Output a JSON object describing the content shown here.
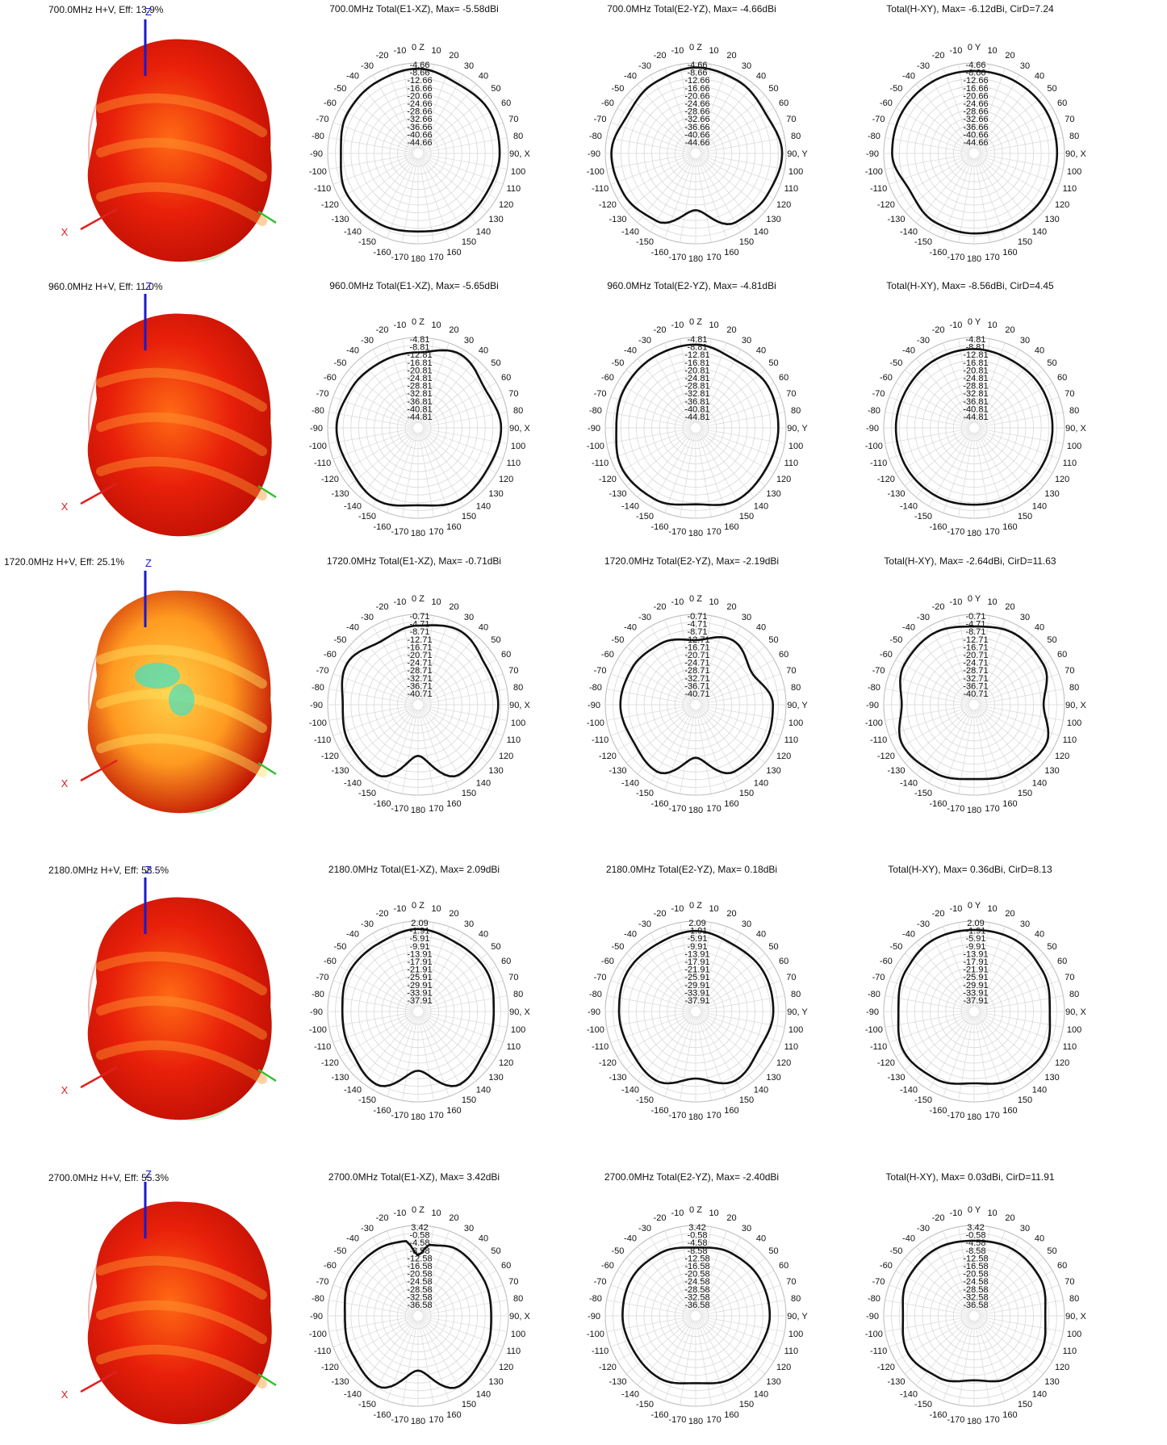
{
  "rows": [
    {
      "freq_title": "700.0MHz H+V, Eff: 13.9%",
      "polar_step": 4,
      "polar_rings": [
        "-4.66",
        "-8.66",
        "-12.66",
        "-16.66",
        "-20.66",
        "-24.66",
        "-28.66",
        "-32.66",
        "-36.66",
        "-40.66",
        "-44.66"
      ],
      "plots": [
        {
          "title": "700.0MHz Total(E1-XZ), Max= -5.58dBi",
          "axis": "Z",
          "side": "X"
        },
        {
          "title": "700.0MHz Total(E2-YZ), Max= -4.66dBi",
          "axis": "Z",
          "side": "Y"
        },
        {
          "title": "Total(H-XY), Max= -6.12dBi, CirD=7.24",
          "axis": "Y",
          "side": "X"
        }
      ]
    },
    {
      "freq_title": "960.0MHz H+V, Eff: 11.0%",
      "polar_step": 4,
      "polar_rings": [
        "-4.81",
        "-8.81",
        "-12.81",
        "-16.81",
        "-20.81",
        "-24.81",
        "-28.81",
        "-32.81",
        "-36.81",
        "-40.81",
        "-44.81"
      ],
      "plots": [
        {
          "title": "960.0MHz Total(E1-XZ), Max= -5.65dBi",
          "axis": "Z",
          "side": "X"
        },
        {
          "title": "960.0MHz Total(E2-YZ), Max= -4.81dBi",
          "axis": "Z",
          "side": "Y"
        },
        {
          "title": "Total(H-XY), Max= -8.56dBi, CirD=4.45",
          "axis": "Y",
          "side": "X"
        }
      ]
    },
    {
      "freq_title": "1720.0MHz H+V, Eff: 25.1%",
      "polar_step": 4,
      "polar_rings": [
        "-0.71",
        "-4.71",
        "-8.71",
        "-12.71",
        "-16.71",
        "-20.71",
        "-24.71",
        "-28.71",
        "-32.71",
        "-36.71",
        "-40.71"
      ],
      "plots": [
        {
          "title": "1720.0MHz Total(E1-XZ), Max= -0.71dBi",
          "axis": "Z",
          "side": "X"
        },
        {
          "title": "1720.0MHz Total(E2-YZ), Max= -2.19dBi",
          "axis": "Z",
          "side": "Y"
        },
        {
          "title": "Total(H-XY), Max= -2.64dBi, CirD=11.63",
          "axis": "Y",
          "side": "X"
        }
      ]
    },
    {
      "freq_title": "2180.0MHz H+V, Eff: 58.5%",
      "polar_step": 4,
      "polar_rings": [
        "2.09",
        "-1.91",
        "-5.91",
        "-9.91",
        "-13.91",
        "-17.91",
        "-21.91",
        "-25.91",
        "-29.91",
        "-33.91",
        "-37.91"
      ],
      "plots": [
        {
          "title": "2180.0MHz Total(E1-XZ), Max= 2.09dBi",
          "axis": "Z",
          "side": "X"
        },
        {
          "title": "2180.0MHz Total(E2-YZ), Max= 0.18dBi",
          "axis": "Z",
          "side": "Y"
        },
        {
          "title": "Total(H-XY), Max= 0.36dBi, CirD=8.13",
          "axis": "Y",
          "side": "X"
        }
      ]
    },
    {
      "freq_title": "2700.0MHz H+V, Eff: 55.3%",
      "polar_step": 4,
      "polar_rings": [
        "3.42",
        "-0.58",
        "-4.58",
        "-8.58",
        "-12.58",
        "-16.58",
        "-20.58",
        "-24.58",
        "-28.58",
        "-32.58",
        "-36.58"
      ],
      "plots": [
        {
          "title": "2700.0MHz Total(E1-XZ), Max= 3.42dBi",
          "axis": "Z",
          "side": "X"
        },
        {
          "title": "2700.0MHz Total(E2-YZ), Max= -2.40dBi",
          "axis": "Z",
          "side": "Y"
        },
        {
          "title": "Total(H-XY), Max= 0.03dBi, CirD=11.91",
          "axis": "Y",
          "side": "X"
        }
      ]
    }
  ],
  "angle_labels": [
    "0",
    "10",
    "20",
    "30",
    "40",
    "50",
    "60",
    "70",
    "80",
    "90",
    "100",
    "110",
    "120",
    "130",
    "140",
    "150",
    "160",
    "170",
    "180",
    "170",
    "160",
    "150",
    "140",
    "130",
    "120",
    "110",
    "100",
    "90",
    "80",
    "70",
    "60",
    "50",
    "40",
    "30",
    "20",
    "10"
  ],
  "angle_label_names": [
    "-10",
    "-20",
    "-30",
    "-40",
    "-50",
    "-60",
    "-70",
    "-80",
    "-90",
    "-100",
    "-110",
    "-120",
    "-130",
    "-140",
    "-150",
    "-160",
    "-170"
  ],
  "axis_3d_labels": {
    "x": "X",
    "z": "Z"
  },
  "colors": {
    "trace": "#111111",
    "grid": "#d8d8d8",
    "blob_hot": "#e8200a",
    "blob_mid": "#ff7a10",
    "blob_cool": "#44e0c0",
    "x_axis": "#e02020",
    "z_axis": "#1a1acc",
    "y_axis": "#30c030"
  },
  "chart_data": [
    {
      "type": "line",
      "title": "700.0MHz Total(E1-XZ), Max= -5.58dBi",
      "coords": "polar",
      "theta_deg": [
        0,
        30,
        60,
        90,
        120,
        150,
        180,
        210,
        240,
        270,
        300,
        330
      ],
      "r_dB": [
        -5.6,
        -8.0,
        -6.5,
        -7.2,
        -8.5,
        -7.5,
        -9.0,
        -7.8,
        -7.0,
        -9.5,
        -7.4,
        -6.8
      ]
    },
    {
      "type": "line",
      "title": "700.0MHz Total(E2-YZ), Max= -4.66dBi",
      "coords": "polar",
      "theta_deg": [
        0,
        30,
        60,
        90,
        120,
        150,
        180,
        210,
        240,
        270,
        300,
        330
      ],
      "r_dB": [
        -5.0,
        -6.0,
        -7.8,
        -4.7,
        -6.6,
        -8.2,
        -20.0,
        -9.0,
        -6.7,
        -5.8,
        -9.0,
        -7.2
      ]
    },
    {
      "type": "line",
      "title": "Total(H-XY), Max= -6.12dBi, CirD=7.24",
      "coords": "polar",
      "theta_deg": [
        0,
        30,
        60,
        90,
        120,
        150,
        180,
        210,
        240,
        270,
        300,
        330
      ],
      "r_dB": [
        -6.8,
        -6.5,
        -6.2,
        -6.5,
        -7.0,
        -7.5,
        -8.0,
        -8.5,
        -11.0,
        -7.0,
        -6.5,
        -6.5
      ]
    },
    {
      "type": "line",
      "title": "960.0MHz Total(E1-XZ), Max= -5.65dBi",
      "coords": "polar",
      "theta_deg": [
        0,
        30,
        60,
        90,
        120,
        150,
        180,
        210,
        240,
        270,
        300,
        330
      ],
      "r_dB": [
        -10.5,
        -5.7,
        -9.5,
        -6.6,
        -7.8,
        -6.6,
        -9.5,
        -6.5,
        -8.5,
        -7.4,
        -9.5,
        -10.5
      ]
    },
    {
      "type": "line",
      "title": "960.0MHz Total(E2-YZ), Max= -4.81dBi",
      "coords": "polar",
      "theta_deg": [
        0,
        30,
        60,
        90,
        120,
        150,
        180,
        210,
        240,
        270,
        300,
        330
      ],
      "r_dB": [
        -6.5,
        -9.0,
        -6.4,
        -6.8,
        -7.5,
        -6.5,
        -10.0,
        -7.0,
        -6.0,
        -8.5,
        -7.5,
        -7.0
      ]
    },
    {
      "type": "line",
      "title": "Total(H-XY), Max= -8.56dBi, CirD=4.45",
      "coords": "polar",
      "theta_deg": [
        0,
        30,
        60,
        90,
        120,
        150,
        180,
        210,
        240,
        270,
        300,
        330
      ],
      "r_dB": [
        -8.8,
        -9.6,
        -9.0,
        -9.0,
        -9.3,
        -9.2,
        -9.8,
        -9.2,
        -9.0,
        -9.1,
        -9.4,
        -9.0
      ]
    },
    {
      "type": "line",
      "title": "1720.0MHz Total(E1-XZ), Max= -0.71dBi",
      "coords": "polar",
      "theta_deg": [
        0,
        30,
        60,
        90,
        120,
        150,
        180,
        210,
        240,
        270,
        300,
        330
      ],
      "r_dB": [
        -4.5,
        -1.5,
        -5.0,
        -4.0,
        -5.2,
        -3.5,
        -19.0,
        -3.5,
        -4.6,
        -6.5,
        -3.0,
        -7.5
      ]
    },
    {
      "type": "line",
      "title": "1720.0MHz Total(E2-YZ), Max= -2.19dBi",
      "coords": "polar",
      "theta_deg": [
        0,
        30,
        60,
        90,
        120,
        150,
        180,
        210,
        240,
        270,
        300,
        330
      ],
      "r_dB": [
        -12.0,
        -7.0,
        -12.0,
        -5.5,
        -4.5,
        -5.5,
        -18.0,
        -5.5,
        -8.0,
        -6.5,
        -7.5,
        -9.0
      ]
    },
    {
      "type": "line",
      "title": "Total(H-XY), Max= -2.64dBi, CirD=11.63",
      "coords": "polar",
      "theta_deg": [
        0,
        30,
        60,
        90,
        120,
        150,
        180,
        210,
        240,
        270,
        300,
        330
      ],
      "r_dB": [
        -5.0,
        -3.2,
        -4.0,
        -9.5,
        -3.0,
        -5.0,
        -7.0,
        -4.8,
        -3.0,
        -8.0,
        -3.8,
        -3.0
      ]
    },
    {
      "type": "line",
      "title": "2180.0MHz Total(E1-XZ), Max= 2.09dBi",
      "coords": "polar",
      "theta_deg": [
        0,
        30,
        60,
        90,
        120,
        150,
        180,
        210,
        240,
        270,
        300,
        330
      ],
      "r_dB": [
        0.0,
        -2.0,
        -1.5,
        -3.5,
        -2.5,
        0.8,
        -12.0,
        0.8,
        -2.5,
        -3.5,
        -1.6,
        -2.0
      ]
    },
    {
      "type": "line",
      "title": "2180.0MHz Total(E2-YZ), Max= 0.18dBi",
      "coords": "polar",
      "theta_deg": [
        0,
        30,
        60,
        90,
        120,
        150,
        180,
        210,
        240,
        270,
        300,
        330
      ],
      "r_dB": [
        -1.0,
        -3.0,
        -2.0,
        -2.5,
        -4.5,
        -1.5,
        -8.0,
        -1.5,
        -3.5,
        -3.0,
        -1.8,
        -2.5
      ]
    },
    {
      "type": "line",
      "title": "Total(H-XY), Max= 0.36dBi, CirD=8.13",
      "coords": "polar",
      "theta_deg": [
        0,
        30,
        60,
        90,
        120,
        150,
        180,
        210,
        240,
        270,
        300,
        330
      ],
      "r_dB": [
        -0.5,
        0.0,
        -1.5,
        -3.5,
        -0.8,
        -2.5,
        -5.5,
        -2.5,
        -0.8,
        -3.5,
        -1.5,
        0.0
      ]
    },
    {
      "type": "line",
      "title": "2700.0MHz Total(E1-XZ), Max= 3.42dBi",
      "coords": "polar",
      "theta_deg": [
        0,
        10,
        30,
        60,
        90,
        120,
        150,
        180,
        210,
        240,
        270,
        300,
        330,
        350
      ],
      "r_dB": [
        -10.0,
        -4.0,
        -1.5,
        -2.5,
        -3.5,
        -1.8,
        0.8,
        -13.0,
        0.6,
        -2.0,
        -3.5,
        -1.0,
        -1.0,
        -2.0
      ]
    },
    {
      "type": "line",
      "title": "2700.0MHz Total(E2-YZ), Max= -2.40dBi",
      "coords": "polar",
      "theta_deg": [
        0,
        30,
        60,
        90,
        120,
        150,
        180,
        210,
        240,
        270,
        300,
        330
      ],
      "r_dB": [
        -6.0,
        -4.0,
        -3.0,
        -3.0,
        -4.5,
        -4.0,
        -6.5,
        -4.0,
        -4.5,
        -3.5,
        -3.0,
        -4.0
      ]
    },
    {
      "type": "line",
      "title": "Total(H-XY), Max= 0.03dBi, CirD=11.91",
      "coords": "polar",
      "theta_deg": [
        0,
        30,
        60,
        90,
        120,
        150,
        180,
        210,
        240,
        270,
        300,
        330
      ],
      "r_dB": [
        -2.5,
        -1.5,
        -2.0,
        -4.5,
        -2.0,
        -4.5,
        -8.0,
        -4.5,
        -2.0,
        -4.5,
        -2.0,
        -1.5
      ]
    }
  ]
}
